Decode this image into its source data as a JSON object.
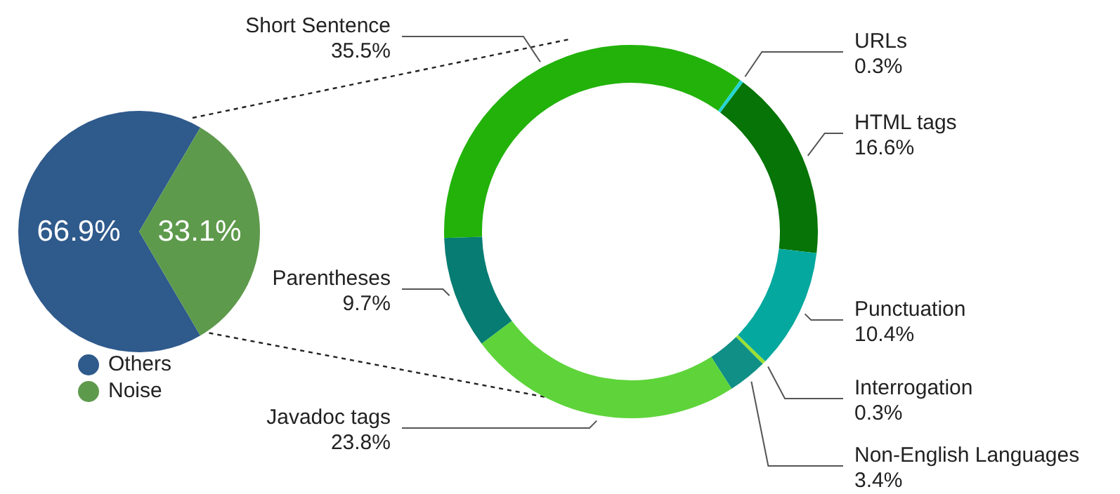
{
  "chart_data": [
    {
      "type": "pie",
      "categories": [
        "Others",
        "Noise"
      ],
      "values": [
        66.9,
        33.1
      ],
      "colors": [
        "#2f5a8c",
        "#5e9a4c"
      ],
      "value_labels": [
        "66.9%",
        "33.1%"
      ],
      "legend": "bottom"
    },
    {
      "type": "donut",
      "categories": [
        "Short Sentence",
        "URLs",
        "HTML tags",
        "Punctuation",
        "Interrogation",
        "Non-English Languages",
        "Javadoc tags",
        "Parentheses"
      ],
      "values": [
        35.5,
        0.3,
        16.6,
        10.4,
        0.3,
        3.4,
        23.8,
        9.7
      ],
      "colors": [
        "#22b20a",
        "#22d5d5",
        "#067406",
        "#05a89e",
        "#9be030",
        "#108f86",
        "#5ed43a",
        "#067c72"
      ],
      "value_labels": [
        "35.5%",
        "0.3%",
        "16.6%",
        "10.4%",
        "0.3%",
        "3.4%",
        "23.8%",
        "9.7%"
      ]
    }
  ]
}
